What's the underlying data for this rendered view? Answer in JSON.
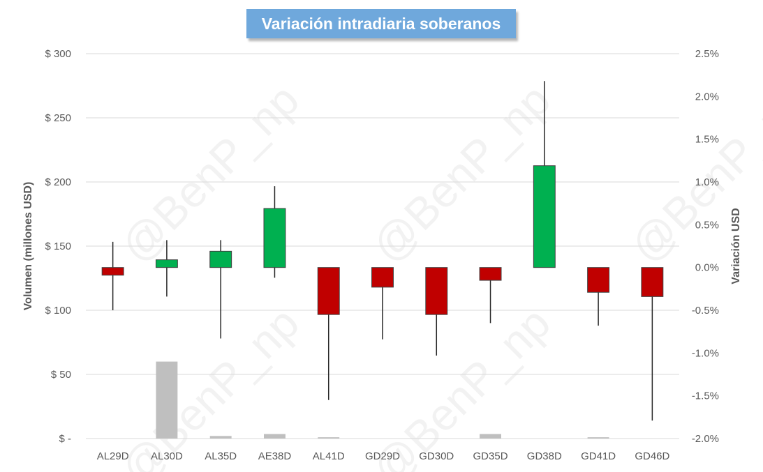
{
  "chart_data": {
    "type": "candlestick-with-volume-bars",
    "title": "Variación intradiaria soberanos",
    "watermark": "@BenP_np",
    "categories": [
      "AL29D",
      "AL30D",
      "AL35D",
      "AE38D",
      "AL41D",
      "GD29D",
      "GD30D",
      "GD35D",
      "GD38D",
      "GD41D",
      "GD46D"
    ],
    "left_axis": {
      "label": "Volumen (millones USD)",
      "range": [
        0,
        300
      ],
      "ticks": [
        0,
        50,
        100,
        150,
        200,
        250,
        300
      ],
      "tick_labels": [
        "$ -",
        "$ 50",
        "$ 100",
        "$ 150",
        "$ 200",
        "$ 250",
        "$ 300"
      ]
    },
    "right_axis": {
      "label": "Variación USD",
      "range": [
        -2.0,
        2.5
      ],
      "ticks": [
        -2.0,
        -1.5,
        -1.0,
        -0.5,
        0.0,
        0.5,
        1.0,
        1.5,
        2.0,
        2.5
      ],
      "tick_labels": [
        "-2.0%",
        "-1.5%",
        "-1.0%",
        "-0.5%",
        "0.0%",
        "0.5%",
        "1.0%",
        "1.5%",
        "2.0%",
        "2.5%"
      ]
    },
    "volume_series": {
      "values": [
        0,
        60,
        2,
        3.5,
        1,
        0,
        0,
        3.5,
        0,
        1,
        0
      ],
      "color": "#bfbfbf"
    },
    "candles": [
      {
        "open": 0.0,
        "close": -0.09,
        "high": 0.3,
        "low": -0.5
      },
      {
        "open": 0.0,
        "close": 0.09,
        "high": 0.32,
        "low": -0.34
      },
      {
        "open": 0.0,
        "close": 0.19,
        "high": 0.32,
        "low": -0.83
      },
      {
        "open": 0.0,
        "close": 0.69,
        "high": 0.95,
        "low": -0.12
      },
      {
        "open": 0.0,
        "close": -0.55,
        "high": 0.0,
        "low": -1.55
      },
      {
        "open": 0.0,
        "close": -0.23,
        "high": 0.0,
        "low": -0.84
      },
      {
        "open": 0.0,
        "close": -0.55,
        "high": 0.0,
        "low": -1.03
      },
      {
        "open": 0.0,
        "close": -0.15,
        "high": 0.0,
        "low": -0.65
      },
      {
        "open": 0.0,
        "close": 1.19,
        "high": 2.18,
        "low": 0.0
      },
      {
        "open": 0.0,
        "close": -0.29,
        "high": 0.0,
        "low": -0.68
      },
      {
        "open": 0.0,
        "close": -0.34,
        "high": 0.0,
        "low": -1.79
      }
    ],
    "colors": {
      "up": "#00b050",
      "down": "#c00000",
      "wick": "#262626",
      "grid": "#d9d9d9",
      "candle_border": "#404040"
    },
    "grid": true
  }
}
